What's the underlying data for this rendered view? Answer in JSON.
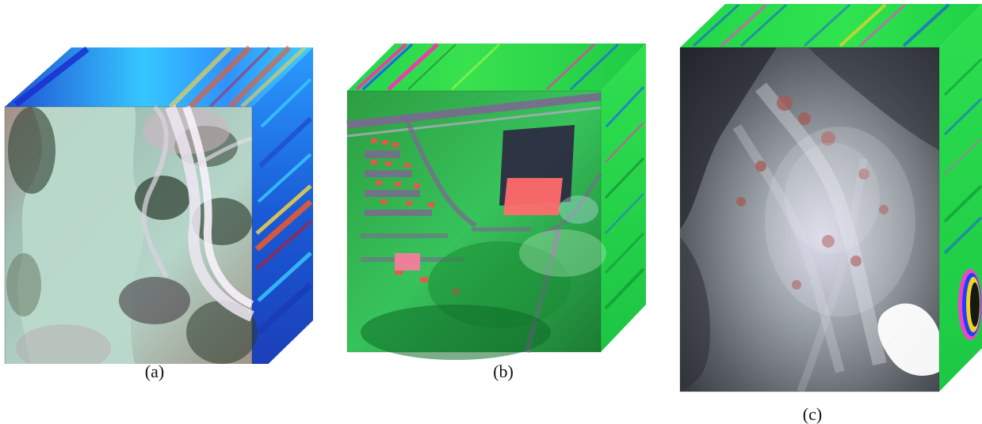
{
  "figures": [
    {
      "caption": "(a)",
      "front_icon": "aerial-lake-icon",
      "palette": {
        "front_base": "#a9b8a6",
        "front_water": "#b7d7c9",
        "front_land": "#9a8a7c",
        "front_road": "#d9d3dc",
        "front_shadow": "#2f3d2b",
        "cube_top_a": "#1f6fd1",
        "cube_top_b": "#35c7ff",
        "cube_side": "#1a73d6",
        "hot": "#f35a24",
        "warm": "#f2d24a"
      }
    },
    {
      "caption": "(b)",
      "front_icon": "aerial-urban-icon",
      "palette": {
        "front_base": "#34b24b",
        "front_roof": "#ff6b6b",
        "front_road": "#7b6a90",
        "front_dark": "#2a2a3a",
        "cube_top": "#31d64a",
        "cube_side": "#24d348",
        "stripe_a": "#ff2fb0",
        "stripe_b": "#1b5bff"
      }
    },
    {
      "caption": "(c)",
      "front_icon": "aerial-desert-icon",
      "palette": {
        "front_base": "#7f7f88",
        "front_dark": "#2d2f36",
        "front_light": "#d7d7e4",
        "front_red": "#a55a56",
        "cube_top": "#24d64a",
        "cube_side": "#25d649",
        "stripe_a": "#ff3bd2",
        "stripe_b": "#ffd12a",
        "stripe_c": "#1a3cff"
      }
    }
  ]
}
